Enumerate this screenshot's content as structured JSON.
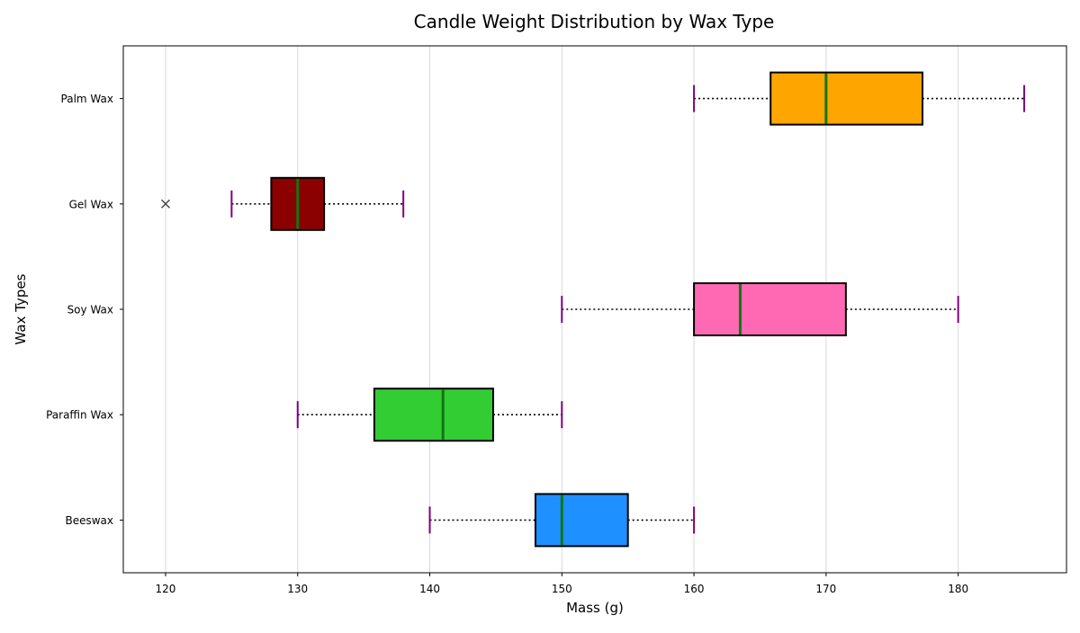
{
  "chart_data": {
    "type": "boxplot",
    "orientation": "horizontal",
    "title": "Candle Weight Distribution by Wax Type",
    "xlabel": "Mass (g)",
    "ylabel": "Wax Types",
    "xlim": [
      116.8,
      188.2
    ],
    "xticks": [
      120,
      130,
      140,
      150,
      160,
      170,
      180
    ],
    "grid": "vertical",
    "categories": [
      "Beeswax",
      "Paraffin Wax",
      "Soy Wax",
      "Gel Wax",
      "Palm Wax"
    ],
    "boxes": [
      {
        "category": "Beeswax",
        "whisker_low": 140,
        "q1": 148,
        "median": 150,
        "q3": 155,
        "whisker_high": 160,
        "color": "#1e90ff",
        "outliers": []
      },
      {
        "category": "Paraffin Wax",
        "whisker_low": 130,
        "q1": 135.8,
        "median": 141,
        "q3": 144.8,
        "whisker_high": 150,
        "color": "#32cd32",
        "outliers": []
      },
      {
        "category": "Soy Wax",
        "whisker_low": 150,
        "q1": 160,
        "median": 163.5,
        "q3": 171.5,
        "whisker_high": 180,
        "color": "#ff69b4",
        "outliers": []
      },
      {
        "category": "Gel Wax",
        "whisker_low": 125,
        "q1": 128,
        "median": 130,
        "q3": 132,
        "whisker_high": 138,
        "color": "#8b0000",
        "outliers": [
          120
        ]
      },
      {
        "category": "Palm Wax",
        "whisker_low": 160,
        "q1": 165.8,
        "median": 170,
        "q3": 177.3,
        "whisker_high": 185,
        "color": "#ffa500",
        "outliers": []
      }
    ],
    "colors": {
      "median": "#117711",
      "caps": "#800080",
      "whiskers": "#000000",
      "grid": "#d9d9d9",
      "outlier": "#444444"
    }
  }
}
